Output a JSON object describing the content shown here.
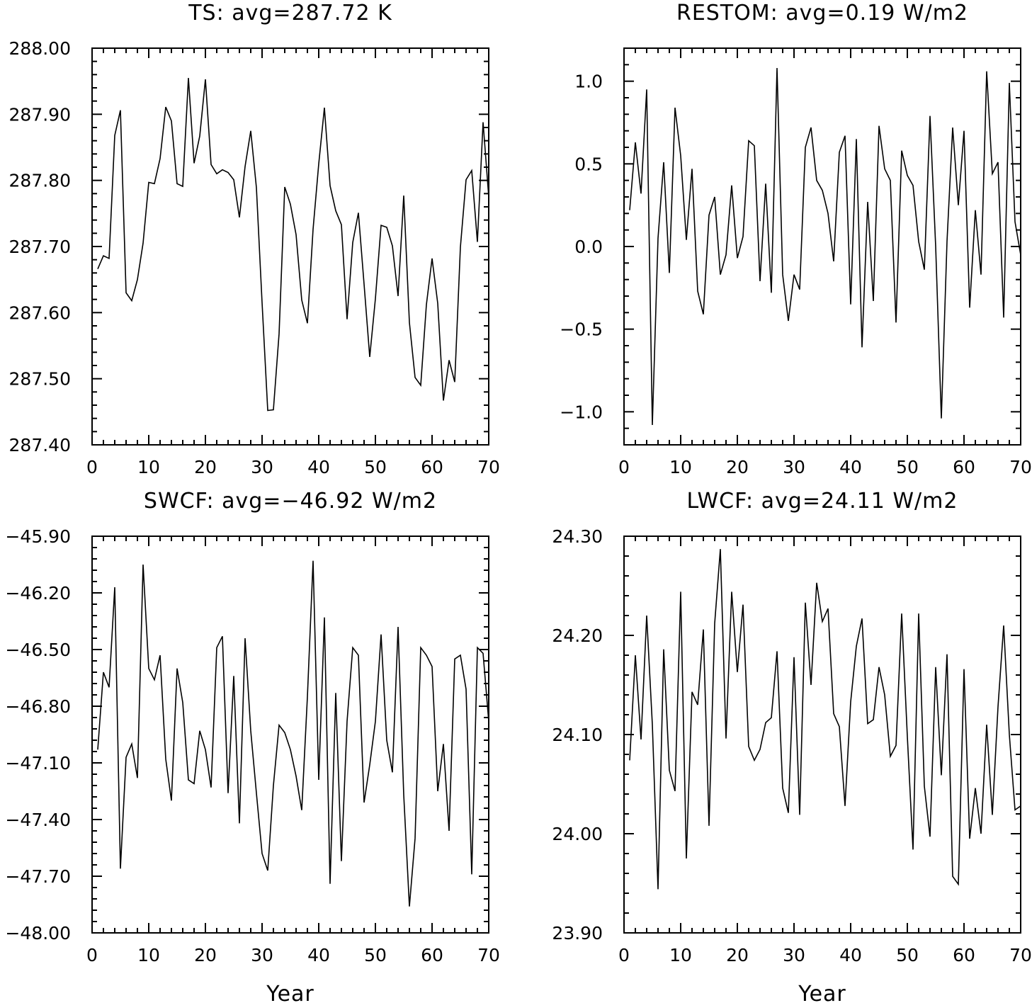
{
  "chart_data": [
    {
      "type": "line",
      "title": "TS: avg=287.72 K",
      "xlabel": "",
      "ylabel": "",
      "xlim": [
        0,
        70
      ],
      "ylim": [
        287.4,
        288.0
      ],
      "xticks": [
        "0",
        "10",
        "20",
        "30",
        "40",
        "50",
        "60",
        "70"
      ],
      "yticks": [
        "287.40",
        "287.50",
        "287.60",
        "287.70",
        "287.80",
        "287.90",
        "288.00"
      ],
      "grid": false,
      "series": [
        {
          "x": [
            1,
            2,
            3,
            4,
            5,
            6,
            7,
            8,
            9,
            10,
            11,
            12,
            13,
            14,
            15,
            16,
            17,
            18,
            19,
            20,
            21,
            22,
            23,
            24,
            25,
            26,
            27,
            28,
            29,
            30,
            31,
            32,
            33,
            34,
            35,
            36,
            37,
            38,
            39,
            40,
            41,
            42,
            43,
            44,
            45,
            46,
            47,
            48,
            49,
            50,
            51,
            52,
            53,
            54,
            55,
            56,
            57,
            58,
            59,
            60,
            61,
            62,
            63,
            64,
            65,
            66,
            67,
            68,
            69,
            70
          ],
          "values": [
            287.666,
            287.686,
            287.682,
            287.868,
            287.906,
            287.63,
            287.618,
            287.65,
            287.705,
            287.797,
            287.795,
            287.833,
            287.911,
            287.89,
            287.795,
            287.791,
            287.955,
            287.826,
            287.867,
            287.953,
            287.824,
            287.81,
            287.816,
            287.812,
            287.801,
            287.744,
            287.821,
            287.875,
            287.789,
            287.615,
            287.452,
            287.453,
            287.568,
            287.79,
            287.764,
            287.718,
            287.619,
            287.584,
            287.726,
            287.825,
            287.91,
            287.792,
            287.754,
            287.733,
            287.59,
            287.706,
            287.751,
            287.643,
            287.533,
            287.621,
            287.732,
            287.729,
            287.701,
            287.625,
            287.777,
            287.585,
            287.502,
            287.49,
            287.612,
            287.682,
            287.614,
            287.467,
            287.528,
            287.495,
            287.699,
            287.801,
            287.815,
            287.707,
            287.888,
            287.775
          ]
        }
      ]
    },
    {
      "type": "line",
      "title": "RESTOM: avg=0.19 W/m2",
      "xlabel": "",
      "ylabel": "",
      "xlim": [
        0,
        70
      ],
      "ylim": [
        -1.2,
        1.2
      ],
      "xticks": [
        "0",
        "10",
        "20",
        "30",
        "40",
        "50",
        "60",
        "70"
      ],
      "yticks": [
        "−1.0",
        "−0.5",
        "0.0",
        "0.5",
        "1.0"
      ],
      "grid": false,
      "series": [
        {
          "x": [
            1,
            2,
            3,
            4,
            5,
            6,
            7,
            8,
            9,
            10,
            11,
            12,
            13,
            14,
            15,
            16,
            17,
            18,
            19,
            20,
            21,
            22,
            23,
            24,
            25,
            26,
            27,
            28,
            29,
            30,
            31,
            32,
            33,
            34,
            35,
            36,
            37,
            38,
            39,
            40,
            41,
            42,
            43,
            44,
            45,
            46,
            47,
            48,
            49,
            50,
            51,
            52,
            53,
            54,
            55,
            56,
            57,
            58,
            59,
            60,
            61,
            62,
            63,
            64,
            65,
            66,
            67,
            68,
            69,
            70
          ],
          "values": [
            0.22,
            0.63,
            0.32,
            0.95,
            -1.08,
            0.05,
            0.51,
            -0.16,
            0.84,
            0.55,
            0.04,
            0.47,
            -0.27,
            -0.41,
            0.19,
            0.3,
            -0.17,
            -0.05,
            0.37,
            -0.07,
            0.06,
            0.64,
            0.61,
            -0.21,
            0.38,
            -0.28,
            1.08,
            -0.17,
            -0.45,
            -0.17,
            -0.26,
            0.6,
            0.72,
            0.4,
            0.34,
            0.2,
            -0.09,
            0.57,
            0.67,
            -0.35,
            0.65,
            -0.61,
            0.27,
            -0.33,
            0.73,
            0.47,
            0.4,
            -0.46,
            0.58,
            0.43,
            0.37,
            0.03,
            -0.14,
            0.79,
            0.0,
            -1.04,
            0.03,
            0.72,
            0.25,
            0.7,
            -0.37,
            0.22,
            -0.17,
            1.06,
            0.44,
            0.51,
            -0.43,
            0.99,
            0.15,
            -0.05
          ]
        }
      ]
    },
    {
      "type": "line",
      "title": "SWCF: avg=−46.92 W/m2",
      "xlabel": "Year",
      "ylabel": "",
      "xlim": [
        0,
        70
      ],
      "ylim": [
        -48.0,
        -45.9
      ],
      "xticks": [
        "0",
        "10",
        "20",
        "30",
        "40",
        "50",
        "60",
        "70"
      ],
      "yticks": [
        "−48.00",
        "−47.70",
        "−47.40",
        "−47.10",
        "−46.80",
        "−46.50",
        "−46.20",
        "−45.90"
      ],
      "grid": false,
      "series": [
        {
          "x": [
            1,
            2,
            3,
            4,
            5,
            6,
            7,
            8,
            9,
            10,
            11,
            12,
            13,
            14,
            15,
            16,
            17,
            18,
            19,
            20,
            21,
            22,
            23,
            24,
            25,
            26,
            27,
            28,
            29,
            30,
            31,
            32,
            33,
            34,
            35,
            36,
            37,
            38,
            39,
            40,
            41,
            42,
            43,
            44,
            45,
            46,
            47,
            48,
            49,
            50,
            51,
            52,
            53,
            54,
            55,
            56,
            57,
            58,
            59,
            60,
            61,
            62,
            63,
            64,
            65,
            66,
            67,
            68,
            69,
            70
          ],
          "values": [
            -47.03,
            -46.62,
            -46.7,
            -46.17,
            -47.66,
            -47.07,
            -47.0,
            -47.18,
            -46.05,
            -46.6,
            -46.66,
            -46.53,
            -47.08,
            -47.3,
            -46.6,
            -46.78,
            -47.19,
            -47.21,
            -46.93,
            -47.03,
            -47.23,
            -46.49,
            -46.43,
            -47.26,
            -46.64,
            -47.42,
            -46.44,
            -46.93,
            -47.26,
            -47.58,
            -47.67,
            -47.22,
            -46.9,
            -46.94,
            -47.03,
            -47.17,
            -47.35,
            -46.75,
            -46.03,
            -47.19,
            -46.33,
            -47.74,
            -46.73,
            -47.62,
            -46.88,
            -46.49,
            -46.53,
            -47.31,
            -47.11,
            -46.88,
            -46.42,
            -46.98,
            -47.15,
            -46.38,
            -47.27,
            -47.86,
            -47.5,
            -46.49,
            -46.53,
            -46.59,
            -47.25,
            -47.0,
            -47.46,
            -46.55,
            -46.53,
            -46.71,
            -47.69,
            -46.49,
            -46.52,
            -46.88
          ]
        }
      ]
    },
    {
      "type": "line",
      "title": "LWCF: avg=24.11 W/m2",
      "xlabel": "Year",
      "ylabel": "",
      "xlim": [
        0,
        70
      ],
      "ylim": [
        23.9,
        24.3
      ],
      "xticks": [
        "0",
        "10",
        "20",
        "30",
        "40",
        "50",
        "60",
        "70"
      ],
      "yticks": [
        "23.90",
        "24.00",
        "24.10",
        "24.20",
        "24.30"
      ],
      "grid": false,
      "series": [
        {
          "x": [
            1,
            2,
            3,
            4,
            5,
            6,
            7,
            8,
            9,
            10,
            11,
            12,
            13,
            14,
            15,
            16,
            17,
            18,
            19,
            20,
            21,
            22,
            23,
            24,
            25,
            26,
            27,
            28,
            29,
            30,
            31,
            32,
            33,
            34,
            35,
            36,
            37,
            38,
            39,
            40,
            41,
            42,
            43,
            44,
            45,
            46,
            47,
            48,
            49,
            50,
            51,
            52,
            53,
            54,
            55,
            56,
            57,
            58,
            59,
            60,
            61,
            62,
            63,
            64,
            65,
            66,
            67,
            68,
            69,
            70
          ],
          "values": [
            24.074,
            24.18,
            24.095,
            24.22,
            24.11,
            23.944,
            24.186,
            24.064,
            24.043,
            24.244,
            23.975,
            24.143,
            24.13,
            24.206,
            24.008,
            24.212,
            24.287,
            24.096,
            24.244,
            24.163,
            24.231,
            24.088,
            24.074,
            24.085,
            24.112,
            24.117,
            24.184,
            24.046,
            24.021,
            24.178,
            24.019,
            24.233,
            24.15,
            24.253,
            24.214,
            24.227,
            24.121,
            24.108,
            24.028,
            24.133,
            24.189,
            24.217,
            24.111,
            24.115,
            24.168,
            24.14,
            24.078,
            24.089,
            24.222,
            24.098,
            23.984,
            24.222,
            24.048,
            23.997,
            24.168,
            24.059,
            24.181,
            23.957,
            23.949,
            24.166,
            23.995,
            24.046,
            24.0,
            24.11,
            24.019,
            24.128,
            24.21,
            24.1,
            24.024,
            24.028
          ]
        }
      ]
    }
  ]
}
